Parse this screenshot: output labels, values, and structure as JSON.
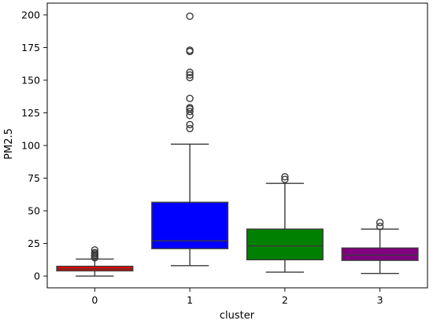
{
  "chart_data": {
    "type": "box",
    "title": "",
    "xlabel": "cluster",
    "ylabel": "PM2.5",
    "ylim": [
      -9,
      209
    ],
    "yticks": [
      0,
      25,
      50,
      75,
      100,
      125,
      150,
      175,
      200
    ],
    "grid": false,
    "categories": [
      "0",
      "1",
      "2",
      "3"
    ],
    "boxes": [
      {
        "category": "0",
        "color": "#ff0000",
        "q1": 4,
        "median": 5.5,
        "q3": 7.5,
        "whisker_low": 0,
        "whisker_high": 13,
        "outliers": [
          14,
          15,
          16,
          17,
          18,
          20
        ]
      },
      {
        "category": "1",
        "color": "#0000ff",
        "q1": 21,
        "median": 27,
        "q3": 56.5,
        "whisker_low": 8,
        "whisker_high": 101,
        "outliers": [
          113,
          116,
          123,
          126,
          128,
          129,
          136,
          152,
          154,
          156,
          172,
          173,
          199
        ]
      },
      {
        "category": "2",
        "color": "#008000",
        "q1": 12.5,
        "median": 23,
        "q3": 36,
        "whisker_low": 3,
        "whisker_high": 71,
        "outliers": [
          74,
          76
        ]
      },
      {
        "category": "3",
        "color": "#800080",
        "q1": 12,
        "median": 16,
        "q3": 21.5,
        "whisker_low": 2,
        "whisker_high": 36,
        "outliers": [
          38,
          41
        ]
      }
    ]
  }
}
